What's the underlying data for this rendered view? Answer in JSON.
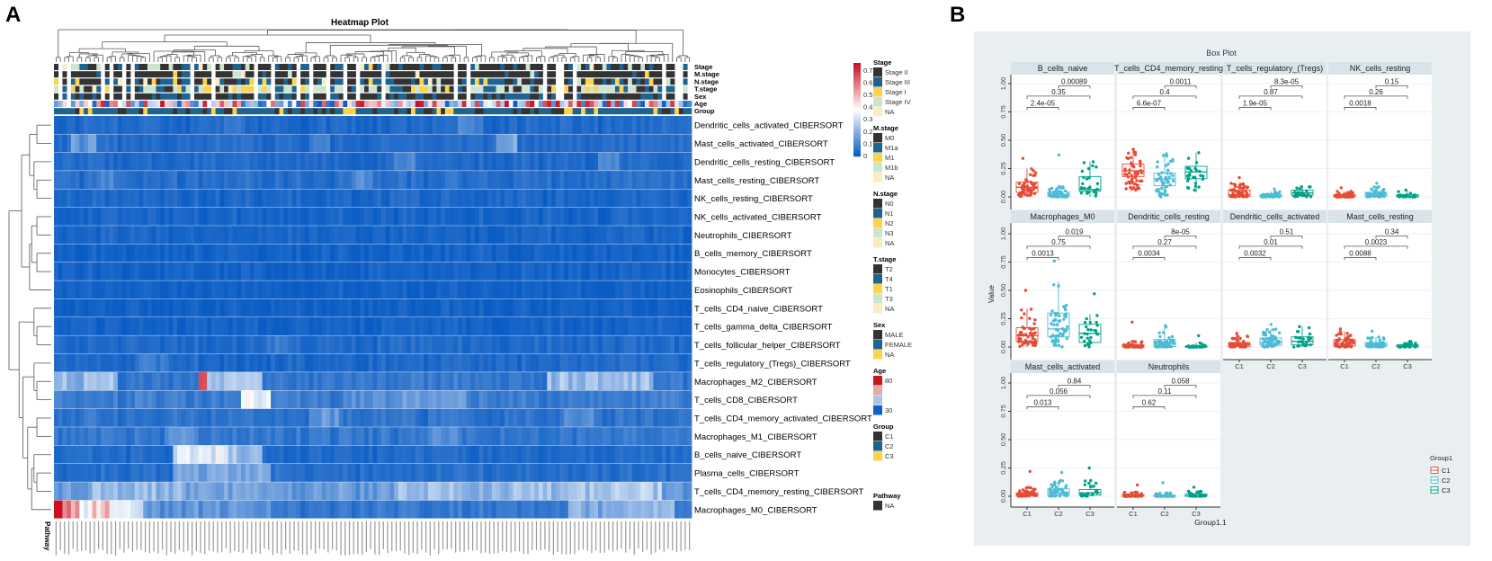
{
  "panel_labels": {
    "a": "A",
    "b": "B"
  },
  "chart_data": [
    {
      "type": "heatmap",
      "title": "Heatmap Plot",
      "color_scale": {
        "min": 0,
        "max": 0.7,
        "ticks": [
          "0",
          "0.1",
          "0.2",
          "0.3",
          "0.4",
          "0.5",
          "0.6",
          "0.7"
        ],
        "low": "#0a5cc4",
        "mid": "#ffffff",
        "high": "#c8101e"
      },
      "annotation_tracks": [
        "Stage",
        "M.stage",
        "N.stage",
        "T.stage",
        "Sex",
        "Age",
        "Group"
      ],
      "bottom_annotation_label": "Pathway",
      "rows": [
        {
          "label": "Dendritic_cells_activated_CIBERSORT",
          "base": 0.03,
          "segments": [
            [
              40,
              44,
              0.07
            ],
            [
              95,
              100,
              0.08
            ]
          ]
        },
        {
          "label": "Mast_cells_activated_CIBERSORT",
          "base": 0.035,
          "segments": [
            [
              4,
              9,
              0.13
            ],
            [
              104,
              108,
              0.16
            ],
            [
              60,
              64,
              0.08
            ]
          ]
        },
        {
          "label": "Dendritic_cells_resting_CIBERSORT",
          "base": 0.03,
          "segments": [
            [
              80,
              84,
              0.08
            ],
            [
              128,
              132,
              0.09
            ]
          ]
        },
        {
          "label": "Mast_cells_resting_CIBERSORT",
          "base": 0.04,
          "segments": [
            [
              10,
              14,
              0.08
            ],
            [
              70,
              74,
              0.1
            ]
          ]
        },
        {
          "label": "NK_cells_resting_CIBERSORT",
          "base": 0.025,
          "segments": []
        },
        {
          "label": "NK_cells_activated_CIBERSORT",
          "base": 0.02,
          "segments": []
        },
        {
          "label": "Neutrophils_CIBERSORT",
          "base": 0.02,
          "segments": []
        },
        {
          "label": "B_cells_memory_CIBERSORT",
          "base": 0.015,
          "segments": []
        },
        {
          "label": "Monocytes_CIBERSORT",
          "base": 0.015,
          "segments": []
        },
        {
          "label": "Eosinophils_CIBERSORT",
          "base": 0.01,
          "segments": []
        },
        {
          "label": "T_cells_CD4_naive_CIBERSORT",
          "base": 0.01,
          "segments": []
        },
        {
          "label": "T_cells_gamma_delta_CIBERSORT",
          "base": 0.015,
          "segments": []
        },
        {
          "label": "T_cells_follicular_helper_CIBERSORT",
          "base": 0.03,
          "segments": [
            [
              50,
              56,
              0.06
            ]
          ]
        },
        {
          "label": "T_cells_regulatory_(Tregs)_CIBERSORT",
          "base": 0.03,
          "segments": [
            [
              20,
              26,
              0.07
            ]
          ]
        },
        {
          "label": "Macrophages_M2_CIBERSORT",
          "base": 0.06,
          "segments": [
            [
              0,
              14,
              0.2
            ],
            [
              34,
              35,
              0.6
            ],
            [
              36,
              48,
              0.22
            ],
            [
              116,
              140,
              0.21
            ]
          ]
        },
        {
          "label": "T_cells_CD8_CIBERSORT",
          "base": 0.07,
          "segments": [
            [
              44,
              50,
              0.3
            ],
            [
              70,
              96,
              0.12
            ]
          ]
        },
        {
          "label": "T_cells_CD4_memory_activated_CIBERSORT",
          "base": 0.05,
          "segments": [
            [
              60,
              66,
              0.12
            ],
            [
              120,
              126,
              0.1
            ]
          ]
        },
        {
          "label": "Macrophages_M1_CIBERSORT",
          "base": 0.06,
          "segments": [
            [
              26,
              32,
              0.12
            ],
            [
              88,
              94,
              0.1
            ]
          ]
        },
        {
          "label": "B_cells_naive_CIBERSORT",
          "base": 0.03,
          "segments": [
            [
              28,
              40,
              0.3
            ],
            [
              41,
              48,
              0.2
            ]
          ]
        },
        {
          "label": "Plasma_cells_CIBERSORT",
          "base": 0.04,
          "segments": [
            [
              28,
              50,
              0.16
            ]
          ]
        },
        {
          "label": "T_cells_CD4_memory_resting_CIBERSORT",
          "base": 0.13,
          "segments": [
            [
              9,
              30,
              0.2
            ],
            [
              31,
              48,
              0.15
            ],
            [
              80,
              110,
              0.2
            ],
            [
              110,
              142,
              0.22
            ]
          ]
        },
        {
          "label": "Macrophages_M0_CIBERSORT",
          "base": 0.06,
          "segments": [
            [
              0,
              1,
              0.65
            ],
            [
              2,
              5,
              0.5
            ],
            [
              6,
              8,
              0.33
            ],
            [
              9,
              12,
              0.42
            ],
            [
              13,
              20,
              0.28
            ],
            [
              21,
              50,
              0.12
            ],
            [
              121,
              145,
              0.18
            ]
          ]
        }
      ],
      "annotation_legends": [
        {
          "title": "Stage",
          "items": [
            {
              "label": "Stage II",
              "color": "#333333"
            },
            {
              "label": "Stage III",
              "color": "#1f6391"
            },
            {
              "label": "Stage I",
              "color": "#fdd34c"
            },
            {
              "label": "Stage IV",
              "color": "#cde5cf"
            },
            {
              "label": "NA",
              "color": "#f8ecc4"
            }
          ]
        },
        {
          "title": "M.stage",
          "items": [
            {
              "label": "M0",
              "color": "#333333"
            },
            {
              "label": "M1a",
              "color": "#1f6391"
            },
            {
              "label": "M1",
              "color": "#fdd34c"
            },
            {
              "label": "M1b",
              "color": "#cde5cf"
            },
            {
              "label": "NA",
              "color": "#f8ecc4"
            }
          ]
        },
        {
          "title": "N.stage",
          "items": [
            {
              "label": "N0",
              "color": "#333333"
            },
            {
              "label": "N1",
              "color": "#1f6391"
            },
            {
              "label": "N2",
              "color": "#fdd34c"
            },
            {
              "label": "N3",
              "color": "#cde5cf"
            },
            {
              "label": "NA",
              "color": "#f8ecc4"
            }
          ]
        },
        {
          "title": "T.stage",
          "items": [
            {
              "label": "T2",
              "color": "#333333"
            },
            {
              "label": "T4",
              "color": "#1f6391"
            },
            {
              "label": "T1",
              "color": "#fdd34c"
            },
            {
              "label": "T3",
              "color": "#cde5cf"
            },
            {
              "label": "NA",
              "color": "#f8ecc4"
            }
          ]
        },
        {
          "title": "Sex",
          "items": [
            {
              "label": "MALE",
              "color": "#333333"
            },
            {
              "label": "FEMALE",
              "color": "#1f6391"
            },
            {
              "label": "NA",
              "color": "#fdd34c"
            }
          ]
        },
        {
          "title": "Age",
          "items": [
            {
              "label": "80",
              "color": "#c8171d"
            },
            {
              "label": "",
              "color": "#e8a8aa"
            },
            {
              "label": "",
              "color": "#a8c8e8"
            },
            {
              "label": "30",
              "color": "#1060c8"
            }
          ]
        },
        {
          "title": "Group",
          "items": [
            {
              "label": "C1",
              "color": "#333333"
            },
            {
              "label": "C2",
              "color": "#1f6391"
            },
            {
              "label": "C3",
              "color": "#fdd34c"
            }
          ]
        },
        {
          "title": "Pathway",
          "items": [
            {
              "label": "NA",
              "color": "#333333"
            }
          ]
        }
      ]
    },
    {
      "type": "box",
      "title": "Box Plot",
      "xlabel": "Group1.1",
      "ylabel": "Value",
      "ylim": [
        0,
        1.05
      ],
      "yticks": [
        "0.00",
        "0.25",
        "0.50",
        "0.75",
        "1.00"
      ],
      "ytick_values": [
        0,
        0.25,
        0.5,
        0.75,
        1.0
      ],
      "categories": [
        "C1",
        "C2",
        "C3"
      ],
      "legend": {
        "title": "Group1",
        "position": "right",
        "items": [
          {
            "label": "C1",
            "color": "#e64b35"
          },
          {
            "label": "C2",
            "color": "#4dbbd5"
          },
          {
            "label": "C3",
            "color": "#00a087"
          }
        ]
      },
      "panels": [
        {
          "name": "B_cells_naive",
          "pvalues": [
            "2.4e-05",
            "0.35",
            "0.00089"
          ],
          "stats": [
            [
              0,
              0.04,
              0.085,
              0.13,
              0.25,
              0.34
            ],
            [
              0,
              0.005,
              0.02,
              0.045,
              0.11,
              0.37
            ],
            [
              0,
              0.05,
              0.065,
              0.18,
              0.31,
              0.31
            ]
          ]
        },
        {
          "name": "T_cells_CD4_memory_resting",
          "pvalues": [
            "6.6e-07",
            "0.4",
            "0.0011"
          ],
          "stats": [
            [
              0.06,
              0.18,
              0.23,
              0.29,
              0.42,
              0.42
            ],
            [
              0,
              0.1,
              0.16,
              0.21,
              0.38,
              0.38
            ],
            [
              0.04,
              0.16,
              0.22,
              0.27,
              0.39,
              0.39
            ]
          ]
        },
        {
          "name": "T_cells_regulatory_(Tregs)",
          "pvalues": [
            "1.9e-05",
            "0.87",
            "8.3e-05"
          ],
          "stats": [
            [
              0,
              0.005,
              0.02,
              0.06,
              0.12,
              0.17
            ],
            [
              0,
              0,
              0.008,
              0.02,
              0.05,
              0.07
            ],
            [
              0,
              0.015,
              0.035,
              0.06,
              0.09,
              0.09
            ]
          ]
        },
        {
          "name": "NK_cells_resting",
          "pvalues": [
            "0.0018",
            "0.26",
            "0.15"
          ],
          "stats": [
            [
              0,
              0,
              0.008,
              0.02,
              0.05,
              0.08
            ],
            [
              0,
              0.005,
              0.02,
              0.04,
              0.09,
              0.12
            ],
            [
              0,
              0,
              0.008,
              0.02,
              0.05,
              0.06
            ]
          ]
        },
        {
          "name": "Macrophages_M0",
          "pvalues": [
            "0.0013",
            "0.75",
            "0.019"
          ],
          "stats": [
            [
              0,
              0.05,
              0.1,
              0.17,
              0.34,
              0.5
            ],
            [
              0,
              0.09,
              0.16,
              0.3,
              0.58,
              0.76
            ],
            [
              0,
              0.04,
              0.12,
              0.2,
              0.29,
              0.47
            ]
          ]
        },
        {
          "name": "Dendritic_cells_resting",
          "pvalues": [
            "0.0034",
            "0.27",
            "8e-05"
          ],
          "stats": [
            [
              0,
              0,
              0.01,
              0.02,
              0.05,
              0.22
            ],
            [
              0,
              0.005,
              0.03,
              0.065,
              0.18,
              0.19
            ],
            [
              0,
              0,
              0.003,
              0.01,
              0.04,
              0.1
            ]
          ]
        },
        {
          "name": "Dendritic_cells_activated",
          "pvalues": [
            "0.0032",
            "0.01",
            "0.51"
          ],
          "stats": [
            [
              0,
              0.005,
              0.02,
              0.04,
              0.1,
              0.12
            ],
            [
              0,
              0.015,
              0.04,
              0.08,
              0.16,
              0.2
            ],
            [
              0,
              0.02,
              0.05,
              0.09,
              0.18,
              0.18
            ]
          ]
        },
        {
          "name": "Mast_cells_resting",
          "pvalues": [
            "0.0088",
            "0.0023",
            "0.34"
          ],
          "stats": [
            [
              0,
              0.01,
              0.03,
              0.065,
              0.14,
              0.16
            ],
            [
              0,
              0.005,
              0.02,
              0.04,
              0.09,
              0.14
            ],
            [
              0,
              0,
              0.01,
              0.02,
              0.05,
              0.05
            ]
          ]
        },
        {
          "name": "Mast_cells_activated",
          "pvalues": [
            "0.013",
            "0.056",
            "0.84"
          ],
          "stats": [
            [
              0,
              0.005,
              0.015,
              0.03,
              0.08,
              0.22
            ],
            [
              0,
              0.01,
              0.03,
              0.065,
              0.14,
              0.21
            ],
            [
              0,
              0.01,
              0.03,
              0.06,
              0.15,
              0.25
            ]
          ]
        },
        {
          "name": "Neutrophils",
          "pvalues": [
            "0.62",
            "0.11",
            "0.058"
          ],
          "stats": [
            [
              0,
              0,
              0.005,
              0.015,
              0.04,
              0.1
            ],
            [
              0,
              0,
              0.003,
              0.01,
              0.03,
              0.12
            ],
            [
              0,
              0,
              0.005,
              0.02,
              0.05,
              0.08
            ]
          ]
        }
      ]
    }
  ]
}
